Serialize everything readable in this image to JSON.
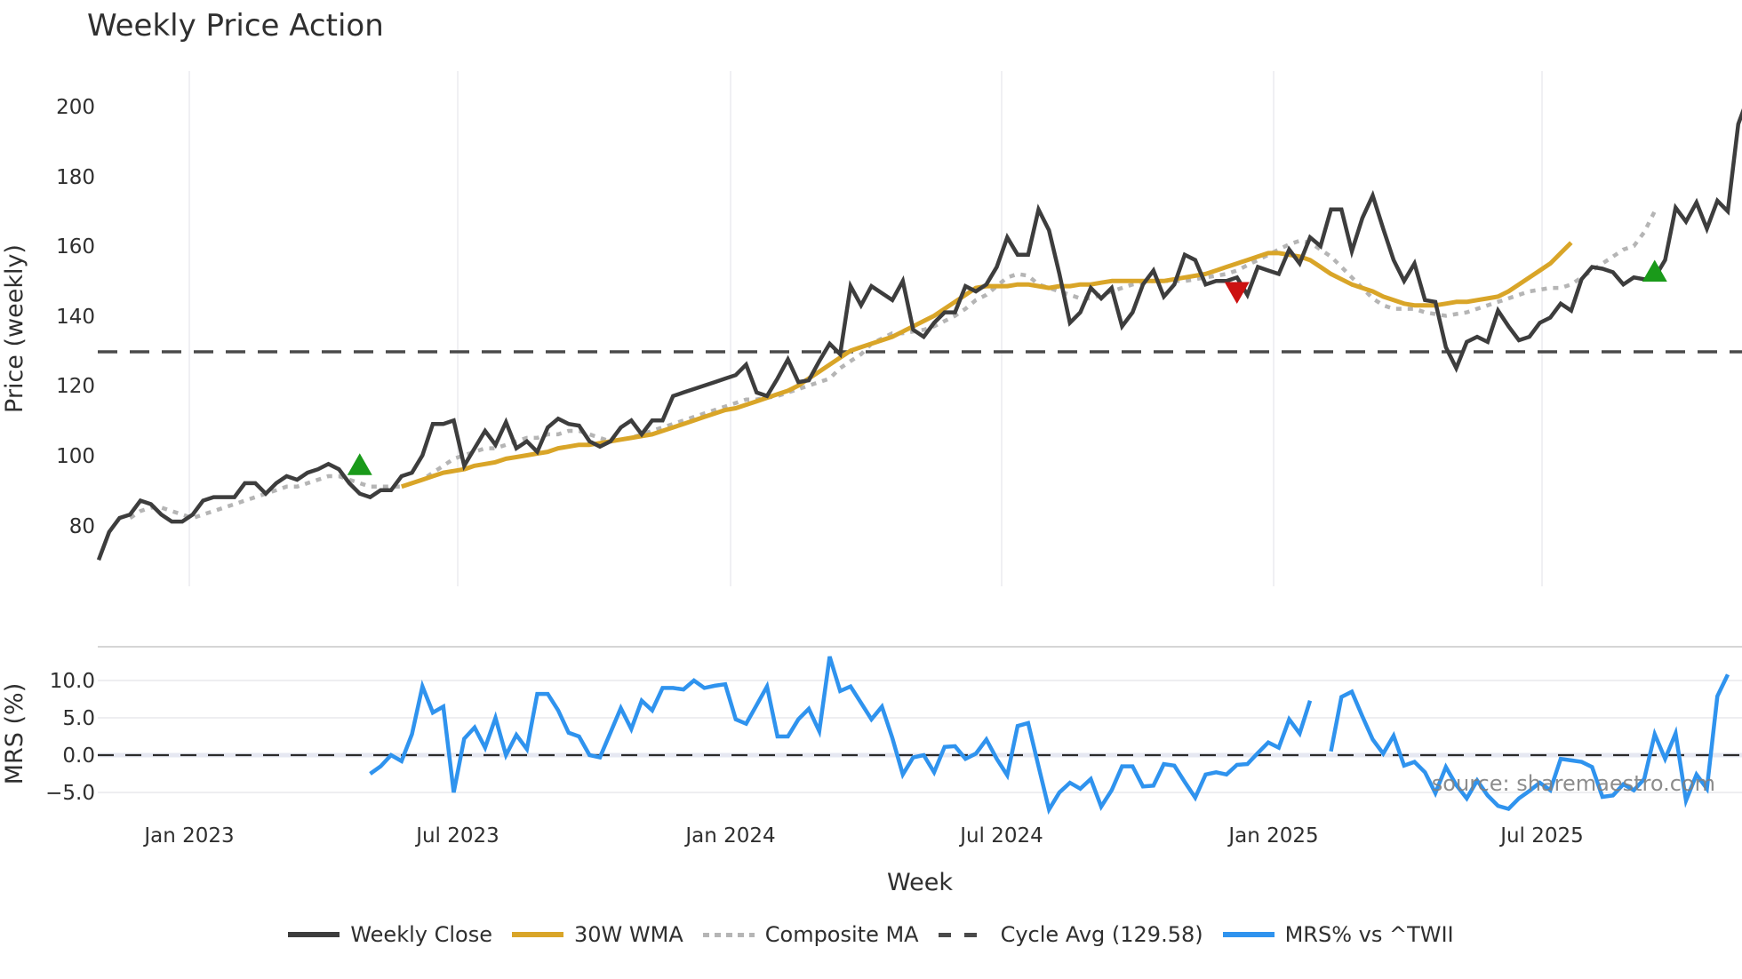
{
  "chart_data": [
    {
      "type": "line",
      "title": "Weekly Price Action",
      "xlabel": "Week",
      "ylabel": "Price (weekly)",
      "ylim": [
        66,
        211
      ],
      "yticks": [
        80,
        100,
        120,
        140,
        160,
        180,
        200
      ],
      "xticks": [
        "Jan 2023",
        "Jul 2023",
        "Jan 2024",
        "Jul 2024",
        "Jan 2025",
        "Jul 2025"
      ],
      "grid": true,
      "x_start": "2022-11-07",
      "x_step": "1 week",
      "reference_lines": [
        {
          "name": "Cycle Avg (129.58)",
          "value": 129.58,
          "style": "dashed",
          "color": "#4a4a4a"
        }
      ],
      "markers": [
        {
          "type": "buy",
          "shape": "triangle-up",
          "color": "#1a9a1a",
          "week_index": 25,
          "value": 97
        },
        {
          "type": "sell",
          "shape": "triangle-down",
          "color": "#cc1111",
          "week_index": 109,
          "value": 147
        },
        {
          "type": "buy",
          "shape": "triangle-up",
          "color": "#1a9a1a",
          "week_index": 149,
          "value": 152.5
        }
      ],
      "series": [
        {
          "name": "Weekly Close",
          "color": "#3d3d3d",
          "style": "solid",
          "values": [
            70,
            78,
            82,
            83,
            87,
            86,
            83,
            81,
            81,
            83,
            87,
            88,
            88,
            88,
            92,
            92,
            89,
            92,
            94,
            93,
            95,
            96,
            97.5,
            96,
            92,
            89,
            88,
            90,
            90,
            94,
            95,
            100,
            109,
            109,
            110,
            97,
            102,
            107,
            103,
            109.5,
            102,
            104,
            101,
            108,
            110.5,
            109,
            108.5,
            104,
            102.5,
            104,
            108,
            110,
            106,
            110,
            110,
            117,
            118,
            119,
            120,
            121,
            122,
            123,
            126,
            118,
            117,
            122,
            127.5,
            121,
            121.5,
            127,
            132,
            129,
            148.5,
            143,
            148.5,
            146.5,
            144.5,
            150,
            136,
            134,
            138,
            141,
            141,
            148.5,
            147,
            149,
            154,
            162.5,
            157.5,
            157.5,
            170.5,
            164.5,
            152,
            138,
            141,
            148,
            145,
            148,
            137,
            141,
            149,
            153,
            145.5,
            149,
            157.5,
            156,
            149,
            150,
            150,
            151,
            146,
            154,
            153,
            152,
            159,
            155,
            162.5,
            160,
            170.5,
            170.5,
            158.5,
            168,
            174.5,
            165,
            156,
            150,
            155,
            144.5,
            144,
            131,
            125,
            132.5,
            134,
            132.5,
            141.5,
            137,
            133,
            134,
            138,
            139.5,
            143.5,
            141.5,
            150.5,
            154,
            153.5,
            152.5,
            149,
            151,
            150.5,
            151,
            156,
            171,
            167,
            172.5,
            165,
            173,
            170,
            195,
            203
          ]
        },
        {
          "name": "30W WMA",
          "color": "#d9a528",
          "style": "solid",
          "start_index": 29,
          "values": [
            91,
            92,
            93,
            94,
            95,
            95.5,
            96,
            97,
            97.5,
            98,
            99,
            99.5,
            100,
            100.5,
            101,
            102,
            102.5,
            103,
            103,
            103.5,
            104,
            104.5,
            105,
            105.5,
            106,
            107,
            108,
            109,
            110,
            111,
            112,
            113,
            113.5,
            114.5,
            115.5,
            116.5,
            117.5,
            118.5,
            120,
            122,
            124,
            126,
            128,
            130,
            131,
            132,
            133,
            134,
            135.5,
            137,
            138.5,
            140,
            142,
            144,
            146,
            148,
            148.5,
            148.5,
            148.5,
            149,
            149,
            148.5,
            148,
            148.5,
            148.5,
            149,
            149,
            149.5,
            150,
            150,
            150,
            150,
            150,
            150,
            150.5,
            151,
            151.5,
            152,
            153,
            154,
            155,
            156,
            157,
            158,
            158,
            157.5,
            157,
            156,
            154,
            152,
            150.5,
            149,
            148,
            147,
            145.5,
            144.5,
            143.5,
            143,
            143,
            143,
            143.5,
            144,
            144,
            144.5,
            145,
            145.5,
            147,
            149,
            151,
            153,
            155,
            158,
            161
          ]
        },
        {
          "name": "Composite MA",
          "color": "#b5b5b5",
          "style": "dotted",
          "start_index": 3,
          "values": [
            82,
            84,
            85,
            85,
            84,
            83,
            82,
            83,
            84,
            85,
            86,
            87,
            88,
            89,
            90,
            91,
            91,
            92,
            93,
            94,
            94,
            93,
            92,
            91,
            91,
            91,
            91,
            92,
            93,
            95,
            97,
            99,
            100,
            101,
            102,
            102,
            103,
            104,
            105,
            105,
            106,
            106,
            107,
            107,
            106,
            105,
            104,
            104.5,
            105,
            106,
            107,
            108,
            109,
            110,
            111,
            112,
            113,
            114,
            115,
            116,
            116,
            116.5,
            117,
            118,
            119,
            120,
            121,
            122,
            125,
            127,
            129,
            132,
            133.5,
            135,
            135,
            135.5,
            136,
            137,
            138.5,
            140,
            142,
            144.5,
            146,
            148.5,
            151,
            152,
            151.5,
            149,
            148,
            147,
            146,
            145,
            145,
            146,
            147,
            148,
            149,
            149.5,
            150,
            150,
            150,
            150,
            150.5,
            151,
            151.5,
            152,
            153,
            154.5,
            156,
            157.5,
            159,
            160.5,
            161.5,
            161,
            159,
            157,
            154,
            151,
            148,
            145,
            143,
            142,
            142,
            142,
            141,
            140.5,
            140,
            140.5,
            141,
            142,
            143,
            144,
            145,
            146,
            147,
            147.5,
            148,
            148,
            149,
            151,
            153,
            155,
            157,
            159,
            160,
            164,
            170
          ]
        },
        {
          "name": "MRS% vs ^TWII",
          "color": "#2f93ee",
          "panel": "lower",
          "ylabel": "MRS (%)",
          "ylim": [
            -9,
            14
          ],
          "yticks": [
            -5.0,
            0.0,
            5.0,
            10.0
          ],
          "start_index": 26,
          "values": [
            -2.5,
            -1.5,
            0,
            -0.8,
            2.8,
            9.2,
            5.7,
            6.5,
            -5,
            2.2,
            3.7,
            1,
            5,
            0,
            2.7,
            0.8,
            8.2,
            8.2,
            6,
            3,
            2.5,
            0,
            -0.3,
            3,
            6.3,
            3.5,
            7.3,
            6,
            9,
            9,
            8.8,
            10,
            9,
            9.3,
            9.5,
            4.8,
            4.2,
            6.7,
            9.2,
            2.5,
            2.5,
            4.8,
            6.2,
            3.2,
            13.2,
            8.6,
            9.2,
            7,
            4.8,
            6.5,
            2.3,
            -2.6,
            -0.3,
            0,
            -2.3,
            1.1,
            1.2,
            -0.5,
            0.2,
            2.1,
            -0.5,
            -2.7,
            3.9,
            4.3,
            -1.5,
            -7.3,
            -5,
            -3.7,
            -4.5,
            -3.2,
            -6.9,
            -4.7,
            -1.5,
            -1.5,
            -4.2,
            -4.1,
            -1.2,
            -1.4,
            -3.6,
            -5.7,
            -2.6,
            -2.3,
            -2.6,
            -1.3,
            -1.2,
            0.3,
            1.7,
            1,
            4.8,
            2.9,
            7.3,
            null,
            0.5,
            7.8,
            8.5,
            5.2,
            2.1,
            0.2,
            2.6,
            -1.4,
            -0.9,
            -2.3,
            -5.1,
            -1.6,
            -4,
            -5.8,
            -3.4,
            -5.4,
            -6.8,
            -7.2,
            -5.8,
            -4.8,
            -3.7,
            -4.7,
            -0.5,
            -0.7,
            -0.9,
            -1.6,
            -5.6,
            -5.4,
            -3.9,
            -4.7,
            -3.2,
            2.8,
            -0.5,
            2.9,
            -6.1,
            -2.6,
            -4.5,
            7.9,
            10.8
          ]
        }
      ],
      "annotation": "source: sharemaestro.com"
    }
  ],
  "header": {
    "title": "Weekly Price Action"
  },
  "axes": {
    "price": {
      "ylabel": "Price (weekly)",
      "ticks": [
        "80",
        "100",
        "120",
        "140",
        "160",
        "180",
        "200"
      ]
    },
    "mrs": {
      "ylabel": "MRS (%)",
      "ticks": [
        "10.0",
        "5.0",
        "0.0",
        "−5.0"
      ]
    },
    "x": {
      "label": "Week",
      "ticks": [
        "Jan 2023",
        "Jul 2023",
        "Jan 2024",
        "Jul 2024",
        "Jan 2025",
        "Jul 2025"
      ]
    }
  },
  "legend": {
    "items": [
      {
        "label": "Weekly Close",
        "color": "#3d3d3d",
        "style": "solid"
      },
      {
        "label": "30W WMA",
        "color": "#d9a528",
        "style": "solid"
      },
      {
        "label": "Composite MA",
        "color": "#b5b5b5",
        "style": "dotted"
      },
      {
        "label": "Cycle Avg (129.58)",
        "color": "#4a4a4a",
        "style": "dashed"
      },
      {
        "label": "MRS% vs ^TWII",
        "color": "#2f93ee",
        "style": "solid"
      }
    ]
  },
  "watermark": "source: sharemaestro.com"
}
